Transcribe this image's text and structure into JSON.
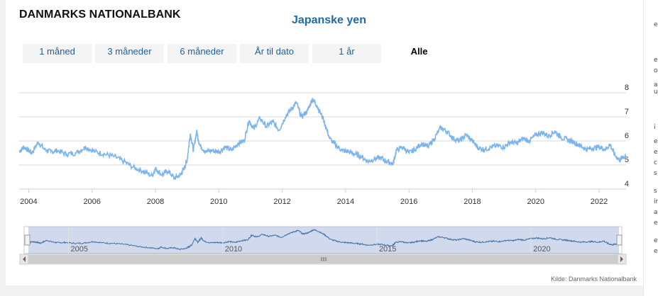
{
  "header": {
    "brand": "DANMARKS NATIONALBANK",
    "title": "Japanske yen"
  },
  "range_buttons": [
    {
      "label": "1 måned",
      "active": false
    },
    {
      "label": "3 måneder",
      "active": false
    },
    {
      "label": "6 måneder",
      "active": false
    },
    {
      "label": "År til dato",
      "active": false
    },
    {
      "label": "1 år",
      "active": false
    },
    {
      "label": "Alle",
      "active": true
    }
  ],
  "source": "Kilde: Danmarks Nationalbank",
  "right_strip_fragments": [
    "e",
    "e",
    "o",
    "a",
    "u",
    "i",
    "e",
    "e",
    "c",
    "s",
    "s",
    "ir",
    "a",
    "e",
    "e",
    "e"
  ],
  "colors": {
    "line": "#7cb5ec",
    "title": "#1f6aa8",
    "navigator_mask": "rgba(102,133,194,0.3)"
  },
  "chart_data": {
    "type": "line",
    "title": "Japanske yen",
    "x_ticks": [
      "2004",
      "2006",
      "2008",
      "2010",
      "2012",
      "2014",
      "2016",
      "2018",
      "2020",
      "2022"
    ],
    "y_ticks": [
      4,
      5,
      6,
      7,
      8
    ],
    "ylim": [
      4,
      8
    ],
    "xlim": [
      2003.7,
      2022.85
    ],
    "grid": true,
    "navigator_ticks": [
      "2005",
      "2010",
      "2015",
      "2020"
    ],
    "series": [
      {
        "name": "",
        "points": [
          [
            2003.7,
            5.55
          ],
          [
            2003.85,
            5.75
          ],
          [
            2004.0,
            5.6
          ],
          [
            2004.1,
            5.5
          ],
          [
            2004.3,
            5.95
          ],
          [
            2004.5,
            5.65
          ],
          [
            2004.7,
            5.55
          ],
          [
            2004.9,
            5.6
          ],
          [
            2005.2,
            5.45
          ],
          [
            2005.5,
            5.5
          ],
          [
            2005.8,
            5.75
          ],
          [
            2006.1,
            5.55
          ],
          [
            2006.4,
            5.45
          ],
          [
            2006.7,
            5.35
          ],
          [
            2007.0,
            5.15
          ],
          [
            2007.3,
            4.9
          ],
          [
            2007.6,
            4.75
          ],
          [
            2007.9,
            4.55
          ],
          [
            2008.0,
            4.85
          ],
          [
            2008.2,
            4.6
          ],
          [
            2008.4,
            4.75
          ],
          [
            2008.6,
            4.45
          ],
          [
            2008.8,
            4.6
          ],
          [
            2008.9,
            4.85
          ],
          [
            2009.0,
            5.2
          ],
          [
            2009.1,
            6.3
          ],
          [
            2009.2,
            5.6
          ],
          [
            2009.3,
            6.4
          ],
          [
            2009.4,
            5.8
          ],
          [
            2009.6,
            5.55
          ],
          [
            2009.8,
            5.6
          ],
          [
            2010.0,
            5.55
          ],
          [
            2010.2,
            5.75
          ],
          [
            2010.4,
            5.6
          ],
          [
            2010.6,
            5.9
          ],
          [
            2010.8,
            6.0
          ],
          [
            2010.95,
            6.85
          ],
          [
            2011.1,
            6.5
          ],
          [
            2011.3,
            6.95
          ],
          [
            2011.5,
            6.6
          ],
          [
            2011.7,
            6.8
          ],
          [
            2011.9,
            6.45
          ],
          [
            2012.1,
            7.0
          ],
          [
            2012.3,
            7.35
          ],
          [
            2012.45,
            7.6
          ],
          [
            2012.6,
            7.0
          ],
          [
            2012.8,
            7.25
          ],
          [
            2012.95,
            7.75
          ],
          [
            2013.1,
            7.45
          ],
          [
            2013.3,
            6.9
          ],
          [
            2013.5,
            6.1
          ],
          [
            2013.7,
            5.8
          ],
          [
            2013.9,
            5.6
          ],
          [
            2014.1,
            5.55
          ],
          [
            2014.3,
            5.45
          ],
          [
            2014.5,
            5.35
          ],
          [
            2014.7,
            5.15
          ],
          [
            2014.9,
            5.25
          ],
          [
            2015.1,
            5.3
          ],
          [
            2015.3,
            5.15
          ],
          [
            2015.5,
            5.05
          ],
          [
            2015.6,
            5.6
          ],
          [
            2015.8,
            5.75
          ],
          [
            2016.0,
            5.5
          ],
          [
            2016.2,
            5.65
          ],
          [
            2016.4,
            5.9
          ],
          [
            2016.6,
            5.75
          ],
          [
            2016.8,
            6.1
          ],
          [
            2017.0,
            6.55
          ],
          [
            2017.2,
            6.4
          ],
          [
            2017.4,
            6.1
          ],
          [
            2017.6,
            6.0
          ],
          [
            2017.8,
            6.25
          ],
          [
            2018.0,
            6.0
          ],
          [
            2018.2,
            5.7
          ],
          [
            2018.4,
            5.65
          ],
          [
            2018.6,
            5.75
          ],
          [
            2018.8,
            5.8
          ],
          [
            2019.0,
            5.75
          ],
          [
            2019.2,
            5.95
          ],
          [
            2019.4,
            5.9
          ],
          [
            2019.6,
            6.1
          ],
          [
            2019.8,
            6.0
          ],
          [
            2020.0,
            6.25
          ],
          [
            2020.2,
            6.35
          ],
          [
            2020.4,
            6.2
          ],
          [
            2020.6,
            6.4
          ],
          [
            2020.8,
            6.15
          ],
          [
            2021.0,
            6.05
          ],
          [
            2021.2,
            5.95
          ],
          [
            2021.4,
            5.8
          ],
          [
            2021.6,
            5.65
          ],
          [
            2021.8,
            5.7
          ],
          [
            2022.0,
            5.75
          ],
          [
            2022.2,
            5.65
          ],
          [
            2022.35,
            5.85
          ],
          [
            2022.5,
            5.4
          ],
          [
            2022.65,
            5.2
          ],
          [
            2022.75,
            5.35
          ],
          [
            2022.85,
            5.3
          ]
        ]
      }
    ]
  }
}
